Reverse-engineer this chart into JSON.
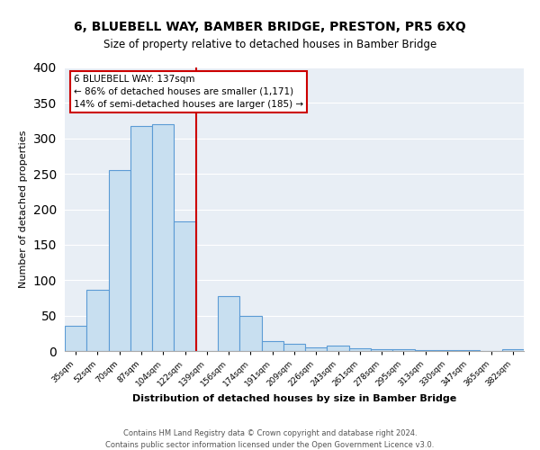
{
  "title": "6, BLUEBELL WAY, BAMBER BRIDGE, PRESTON, PR5 6XQ",
  "subtitle": "Size of property relative to detached houses in Bamber Bridge",
  "xlabel": "Distribution of detached houses by size in Bamber Bridge",
  "ylabel": "Number of detached properties",
  "bin_labels": [
    "35sqm",
    "52sqm",
    "70sqm",
    "87sqm",
    "104sqm",
    "122sqm",
    "139sqm",
    "156sqm",
    "174sqm",
    "191sqm",
    "209sqm",
    "226sqm",
    "243sqm",
    "261sqm",
    "278sqm",
    "295sqm",
    "313sqm",
    "330sqm",
    "347sqm",
    "365sqm",
    "382sqm"
  ],
  "bar_values": [
    35,
    86,
    255,
    317,
    320,
    183,
    0,
    77,
    50,
    14,
    10,
    5,
    8,
    4,
    3,
    2,
    1,
    1,
    1,
    0,
    3
  ],
  "bar_color": "#c8dff0",
  "bar_edge_color": "#5b9bd5",
  "vline_color": "#cc0000",
  "annotation_title": "6 BLUEBELL WAY: 137sqm",
  "annotation_line1": "← 86% of detached houses are smaller (1,171)",
  "annotation_line2": "14% of semi-detached houses are larger (185) →",
  "annotation_box_color": "white",
  "annotation_box_edge": "#cc0000",
  "ylim": [
    0,
    400
  ],
  "yticks": [
    0,
    50,
    100,
    150,
    200,
    250,
    300,
    350,
    400
  ],
  "background_color": "#e8eef5",
  "grid_color": "#ffffff",
  "footer1": "Contains HM Land Registry data © Crown copyright and database right 2024.",
  "footer2": "Contains public sector information licensed under the Open Government Licence v3.0."
}
